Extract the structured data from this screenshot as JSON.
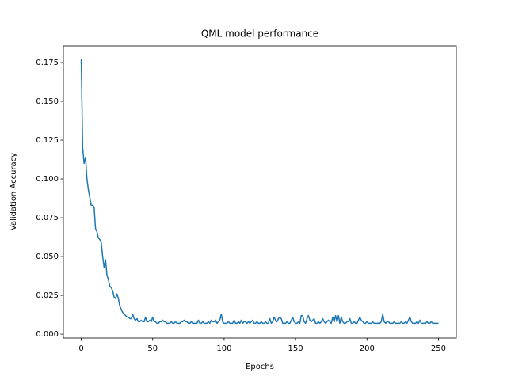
{
  "chart_data": {
    "type": "line",
    "title": "QML model performance",
    "x_label": "Epochs",
    "y_label": "Validation Accuracy",
    "color": "#1f77b4",
    "xlim": [
      -12.5,
      262.5
    ],
    "xticks": [
      0,
      50,
      100,
      150,
      200,
      250
    ],
    "ylim": [
      -0.0025,
      0.1857
    ],
    "yticks": [
      {
        "value": 0,
        "label": "0.000"
      },
      {
        "value": 0.025,
        "label": "0.025"
      },
      {
        "value": 0.05,
        "label": "0.050"
      },
      {
        "value": 0.075,
        "label": "0.075"
      },
      {
        "value": 0.1,
        "label": "0.100"
      },
      {
        "value": 0.125,
        "label": "0.125"
      },
      {
        "value": 0.15,
        "label": "0.150"
      },
      {
        "value": 0.175,
        "label": "0.175"
      }
    ],
    "x": [
      0,
      1,
      2,
      3,
      4,
      5,
      6,
      7,
      8,
      9,
      10,
      11,
      12,
      13,
      14,
      15,
      16,
      17,
      18,
      19,
      20,
      21,
      22,
      23,
      24,
      25,
      26,
      27,
      28,
      29,
      30,
      31,
      32,
      33,
      34,
      35,
      36,
      37,
      38,
      39,
      40,
      41,
      42,
      43,
      44,
      45,
      46,
      47,
      48,
      49,
      50,
      51,
      52,
      53,
      54,
      55,
      56,
      57,
      58,
      59,
      60,
      61,
      62,
      63,
      64,
      65,
      66,
      67,
      68,
      69,
      70,
      71,
      72,
      73,
      74,
      75,
      76,
      77,
      78,
      79,
      80,
      81,
      82,
      83,
      84,
      85,
      86,
      87,
      88,
      89,
      90,
      91,
      92,
      93,
      94,
      95,
      96,
      97,
      98,
      99,
      100,
      101,
      102,
      103,
      104,
      105,
      106,
      107,
      108,
      109,
      110,
      111,
      112,
      113,
      114,
      115,
      116,
      117,
      118,
      119,
      120,
      121,
      122,
      123,
      124,
      125,
      126,
      127,
      128,
      129,
      130,
      131,
      132,
      133,
      134,
      135,
      136,
      137,
      138,
      139,
      140,
      141,
      142,
      143,
      144,
      145,
      146,
      147,
      148,
      149,
      150,
      151,
      152,
      153,
      154,
      155,
      156,
      157,
      158,
      159,
      160,
      161,
      162,
      163,
      164,
      165,
      166,
      167,
      168,
      169,
      170,
      171,
      172,
      173,
      174,
      175,
      176,
      177,
      178,
      179,
      180,
      181,
      182,
      183,
      184,
      185,
      186,
      187,
      188,
      189,
      190,
      191,
      192,
      193,
      194,
      195,
      196,
      197,
      198,
      199,
      200,
      201,
      202,
      203,
      204,
      205,
      206,
      207,
      208,
      209,
      210,
      211,
      212,
      213,
      214,
      215,
      216,
      217,
      218,
      219,
      220,
      221,
      222,
      223,
      224,
      225,
      226,
      227,
      228,
      229,
      230,
      231,
      232,
      233,
      234,
      235,
      236,
      237,
      238,
      239,
      240,
      241,
      242,
      243,
      244,
      245,
      246,
      247,
      248,
      249,
      250
    ],
    "values": [
      0.177,
      0.12,
      0.11,
      0.114,
      0.1,
      0.093,
      0.088,
      0.083,
      0.083,
      0.082,
      0.068,
      0.066,
      0.062,
      0.061,
      0.059,
      0.05,
      0.043,
      0.048,
      0.038,
      0.035,
      0.031,
      0.03,
      0.028,
      0.024,
      0.023,
      0.026,
      0.023,
      0.018,
      0.016,
      0.014,
      0.013,
      0.012,
      0.011,
      0.011,
      0.01,
      0.01,
      0.013,
      0.01,
      0.009,
      0.01,
      0.008,
      0.008,
      0.009,
      0.008,
      0.008,
      0.011,
      0.008,
      0.008,
      0.009,
      0.008,
      0.011,
      0.008,
      0.008,
      0.007,
      0.007,
      0.008,
      0.008,
      0.009,
      0.008,
      0.008,
      0.007,
      0.007,
      0.007,
      0.008,
      0.007,
      0.007,
      0.008,
      0.007,
      0.007,
      0.007,
      0.008,
      0.008,
      0.009,
      0.008,
      0.008,
      0.007,
      0.007,
      0.008,
      0.007,
      0.007,
      0.007,
      0.007,
      0.009,
      0.007,
      0.007,
      0.008,
      0.007,
      0.007,
      0.007,
      0.008,
      0.007,
      0.009,
      0.008,
      0.008,
      0.009,
      0.007,
      0.008,
      0.009,
      0.013,
      0.008,
      0.007,
      0.007,
      0.007,
      0.008,
      0.007,
      0.007,
      0.007,
      0.009,
      0.007,
      0.007,
      0.008,
      0.007,
      0.009,
      0.007,
      0.008,
      0.008,
      0.007,
      0.008,
      0.007,
      0.008,
      0.009,
      0.007,
      0.007,
      0.008,
      0.007,
      0.007,
      0.008,
      0.007,
      0.007,
      0.008,
      0.007,
      0.007,
      0.01,
      0.007,
      0.008,
      0.011,
      0.009,
      0.008,
      0.01,
      0.011,
      0.01,
      0.007,
      0.007,
      0.007,
      0.008,
      0.007,
      0.007,
      0.009,
      0.011,
      0.008,
      0.007,
      0.007,
      0.008,
      0.007,
      0.012,
      0.012,
      0.008,
      0.007,
      0.01,
      0.012,
      0.009,
      0.008,
      0.009,
      0.01,
      0.007,
      0.007,
      0.008,
      0.007,
      0.008,
      0.01,
      0.008,
      0.007,
      0.008,
      0.009,
      0.008,
      0.007,
      0.011,
      0.008,
      0.012,
      0.008,
      0.012,
      0.007,
      0.011,
      0.008,
      0.007,
      0.007,
      0.008,
      0.008,
      0.01,
      0.007,
      0.007,
      0.008,
      0.007,
      0.007,
      0.009,
      0.011,
      0.009,
      0.008,
      0.007,
      0.007,
      0.008,
      0.007,
      0.007,
      0.007,
      0.008,
      0.007,
      0.007,
      0.007,
      0.007,
      0.007,
      0.008,
      0.013,
      0.008,
      0.007,
      0.008,
      0.008,
      0.007,
      0.007,
      0.007,
      0.008,
      0.007,
      0.007,
      0.007,
      0.007,
      0.008,
      0.007,
      0.007,
      0.008,
      0.007,
      0.009,
      0.011,
      0.008,
      0.007,
      0.007,
      0.007,
      0.008,
      0.007,
      0.009,
      0.007,
      0.007,
      0.007,
      0.007,
      0.008,
      0.007,
      0.007,
      0.008,
      0.007,
      0.007,
      0.007,
      0.007,
      0.007
    ]
  }
}
